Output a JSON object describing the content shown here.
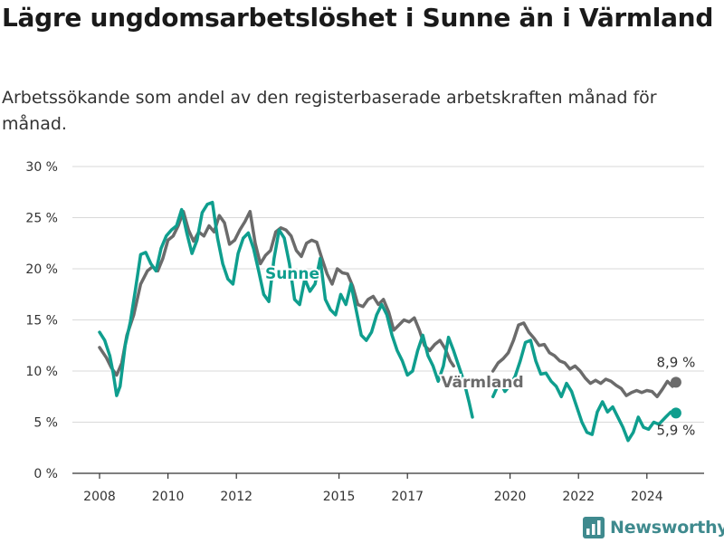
{
  "chart_data": {
    "type": "line",
    "title": "Lägre ungdomsarbetslöshet i Sunne än i Värmland",
    "subtitle": "Arbetssökande som andel av den registerbaserade arbetskraften månad för månad.",
    "xlabel": "",
    "ylabel": "",
    "ylim": [
      0,
      30
    ],
    "yticks": [
      0,
      5,
      10,
      15,
      20,
      25,
      30
    ],
    "ytick_labels": [
      "0 %",
      "5 %",
      "10 %",
      "15 %",
      "20 %",
      "25 %",
      "30 %"
    ],
    "xlim": [
      2008,
      2025.5
    ],
    "xticks": [
      2008,
      2010,
      2012,
      2015,
      2017,
      2020,
      2022,
      2024
    ],
    "xtick_labels": [
      "2008",
      "2010",
      "2012",
      "2015",
      "2017",
      "2020",
      "2022",
      "2024"
    ],
    "grid": true,
    "series": [
      {
        "name": "Värmland",
        "color": "#6b6b6b",
        "end_label": "8,9 %",
        "points": [
          [
            2008.0,
            12.3
          ],
          [
            2008.2,
            11.3
          ],
          [
            2008.35,
            10.3
          ],
          [
            2008.5,
            9.6
          ],
          [
            2008.65,
            10.8
          ],
          [
            2008.8,
            13.5
          ],
          [
            2009.0,
            15.5
          ],
          [
            2009.2,
            18.5
          ],
          [
            2009.4,
            19.8
          ],
          [
            2009.55,
            20.2
          ],
          [
            2009.7,
            19.8
          ],
          [
            2009.85,
            21.0
          ],
          [
            2010.0,
            22.8
          ],
          [
            2010.15,
            23.2
          ],
          [
            2010.3,
            24.2
          ],
          [
            2010.45,
            25.6
          ],
          [
            2010.6,
            23.8
          ],
          [
            2010.75,
            22.7
          ],
          [
            2010.9,
            23.6
          ],
          [
            2011.05,
            23.2
          ],
          [
            2011.2,
            24.2
          ],
          [
            2011.35,
            23.6
          ],
          [
            2011.5,
            25.2
          ],
          [
            2011.65,
            24.5
          ],
          [
            2011.8,
            22.4
          ],
          [
            2011.95,
            22.8
          ],
          [
            2012.1,
            23.8
          ],
          [
            2012.25,
            24.6
          ],
          [
            2012.4,
            25.6
          ],
          [
            2012.55,
            22.5
          ],
          [
            2012.7,
            20.5
          ],
          [
            2012.85,
            21.3
          ],
          [
            2013.0,
            21.8
          ],
          [
            2013.15,
            23.6
          ],
          [
            2013.3,
            24.0
          ],
          [
            2013.45,
            23.8
          ],
          [
            2013.6,
            23.2
          ],
          [
            2013.75,
            21.8
          ],
          [
            2013.9,
            21.2
          ],
          [
            2014.05,
            22.5
          ],
          [
            2014.2,
            22.8
          ],
          [
            2014.35,
            22.6
          ],
          [
            2014.5,
            21.0
          ],
          [
            2014.65,
            19.5
          ],
          [
            2014.8,
            18.5
          ],
          [
            2014.95,
            20.0
          ],
          [
            2015.1,
            19.6
          ],
          [
            2015.25,
            19.5
          ],
          [
            2015.4,
            18.3
          ],
          [
            2015.55,
            16.5
          ],
          [
            2015.7,
            16.3
          ],
          [
            2015.85,
            17.0
          ],
          [
            2016.0,
            17.3
          ],
          [
            2016.15,
            16.5
          ],
          [
            2016.3,
            17.0
          ],
          [
            2016.45,
            15.8
          ],
          [
            2016.6,
            14.0
          ],
          [
            2016.75,
            14.5
          ],
          [
            2016.9,
            15.0
          ],
          [
            2017.05,
            14.8
          ],
          [
            2017.2,
            15.2
          ],
          [
            2017.35,
            14.0
          ],
          [
            2017.5,
            12.5
          ],
          [
            2017.65,
            12.0
          ],
          [
            2017.8,
            12.6
          ],
          [
            2017.95,
            13.0
          ],
          [
            2018.1,
            12.2
          ],
          [
            2018.25,
            11.0
          ],
          [
            2018.35,
            10.5
          ]
        ],
        "points_2": [
          [
            2019.5,
            10.0
          ],
          [
            2019.65,
            10.8
          ],
          [
            2019.8,
            11.2
          ],
          [
            2019.95,
            11.8
          ],
          [
            2020.1,
            13.0
          ],
          [
            2020.25,
            14.5
          ],
          [
            2020.4,
            14.7
          ],
          [
            2020.55,
            13.8
          ],
          [
            2020.7,
            13.2
          ],
          [
            2020.85,
            12.5
          ],
          [
            2021.0,
            12.6
          ],
          [
            2021.15,
            11.8
          ],
          [
            2021.3,
            11.5
          ],
          [
            2021.45,
            11.0
          ],
          [
            2021.6,
            10.8
          ],
          [
            2021.75,
            10.2
          ],
          [
            2021.9,
            10.5
          ],
          [
            2022.05,
            10.0
          ],
          [
            2022.2,
            9.3
          ],
          [
            2022.35,
            8.8
          ],
          [
            2022.5,
            9.1
          ],
          [
            2022.65,
            8.8
          ],
          [
            2022.8,
            9.2
          ],
          [
            2022.95,
            9.0
          ],
          [
            2023.1,
            8.6
          ],
          [
            2023.25,
            8.3
          ],
          [
            2023.4,
            7.6
          ],
          [
            2023.55,
            7.9
          ],
          [
            2023.7,
            8.1
          ],
          [
            2023.85,
            7.9
          ],
          [
            2024.0,
            8.1
          ],
          [
            2024.15,
            8.0
          ],
          [
            2024.3,
            7.5
          ],
          [
            2024.45,
            8.2
          ],
          [
            2024.6,
            9.0
          ],
          [
            2024.75,
            8.5
          ],
          [
            2024.85,
            8.9
          ]
        ]
      },
      {
        "name": "Sunne",
        "color": "#0f9e8e",
        "end_label": "5,9 %",
        "points": [
          [
            2008.0,
            13.8
          ],
          [
            2008.15,
            13.0
          ],
          [
            2008.3,
            11.5
          ],
          [
            2008.4,
            9.8
          ],
          [
            2008.5,
            7.6
          ],
          [
            2008.6,
            8.5
          ],
          [
            2008.75,
            12.5
          ],
          [
            2008.9,
            14.8
          ],
          [
            2009.05,
            18.0
          ],
          [
            2009.2,
            21.4
          ],
          [
            2009.35,
            21.6
          ],
          [
            2009.5,
            20.5
          ],
          [
            2009.65,
            19.8
          ],
          [
            2009.8,
            22.0
          ],
          [
            2009.95,
            23.2
          ],
          [
            2010.1,
            23.8
          ],
          [
            2010.25,
            24.2
          ],
          [
            2010.4,
            25.8
          ],
          [
            2010.55,
            23.5
          ],
          [
            2010.7,
            21.5
          ],
          [
            2010.85,
            22.8
          ],
          [
            2011.0,
            25.5
          ],
          [
            2011.15,
            26.3
          ],
          [
            2011.3,
            26.5
          ],
          [
            2011.45,
            23.0
          ],
          [
            2011.6,
            20.5
          ],
          [
            2011.75,
            19.0
          ],
          [
            2011.9,
            18.5
          ],
          [
            2012.05,
            21.5
          ],
          [
            2012.2,
            23.0
          ],
          [
            2012.35,
            23.5
          ],
          [
            2012.5,
            22.0
          ],
          [
            2012.65,
            19.8
          ],
          [
            2012.8,
            17.5
          ],
          [
            2012.95,
            16.8
          ],
          [
            2013.1,
            21.0
          ],
          [
            2013.25,
            23.8
          ],
          [
            2013.4,
            23.0
          ],
          [
            2013.55,
            20.5
          ],
          [
            2013.7,
            17.0
          ],
          [
            2013.85,
            16.5
          ],
          [
            2014.0,
            19.0
          ],
          [
            2014.15,
            17.8
          ],
          [
            2014.3,
            18.5
          ],
          [
            2014.45,
            21.0
          ],
          [
            2014.6,
            17.0
          ],
          [
            2014.75,
            16.0
          ],
          [
            2014.9,
            15.5
          ],
          [
            2015.05,
            17.5
          ],
          [
            2015.2,
            16.5
          ],
          [
            2015.35,
            18.5
          ],
          [
            2015.5,
            16.0
          ],
          [
            2015.65,
            13.5
          ],
          [
            2015.8,
            13.0
          ],
          [
            2015.95,
            13.8
          ],
          [
            2016.1,
            15.5
          ],
          [
            2016.25,
            16.5
          ],
          [
            2016.4,
            15.5
          ],
          [
            2016.55,
            13.5
          ],
          [
            2016.7,
            12.0
          ],
          [
            2016.85,
            11.0
          ],
          [
            2017.0,
            9.6
          ],
          [
            2017.15,
            10.0
          ],
          [
            2017.3,
            12.0
          ],
          [
            2017.45,
            13.5
          ],
          [
            2017.6,
            11.5
          ],
          [
            2017.75,
            10.5
          ],
          [
            2017.9,
            9.0
          ],
          [
            2018.05,
            10.5
          ],
          [
            2018.2,
            13.3
          ],
          [
            2018.35,
            12.0
          ],
          [
            2018.5,
            10.5
          ],
          [
            2018.65,
            9.0
          ],
          [
            2018.8,
            7.0
          ],
          [
            2018.9,
            5.5
          ]
        ],
        "points_2": [
          [
            2019.5,
            7.5
          ],
          [
            2019.7,
            9.0
          ],
          [
            2019.85,
            8.0
          ],
          [
            2020.0,
            8.6
          ],
          [
            2020.15,
            9.5
          ],
          [
            2020.3,
            11.0
          ],
          [
            2020.45,
            12.8
          ],
          [
            2020.6,
            13.0
          ],
          [
            2020.75,
            11.0
          ],
          [
            2020.9,
            9.7
          ],
          [
            2021.05,
            9.8
          ],
          [
            2021.2,
            9.0
          ],
          [
            2021.35,
            8.5
          ],
          [
            2021.5,
            7.5
          ],
          [
            2021.65,
            8.8
          ],
          [
            2021.8,
            8.0
          ],
          [
            2021.95,
            6.5
          ],
          [
            2022.1,
            5.0
          ],
          [
            2022.25,
            4.0
          ],
          [
            2022.4,
            3.8
          ],
          [
            2022.55,
            6.0
          ],
          [
            2022.7,
            7.0
          ],
          [
            2022.85,
            6.0
          ],
          [
            2023.0,
            6.5
          ],
          [
            2023.15,
            5.5
          ],
          [
            2023.3,
            4.5
          ],
          [
            2023.45,
            3.2
          ],
          [
            2023.6,
            4.0
          ],
          [
            2023.75,
            5.5
          ],
          [
            2023.9,
            4.5
          ],
          [
            2024.05,
            4.3
          ],
          [
            2024.2,
            5.0
          ],
          [
            2024.35,
            4.8
          ],
          [
            2024.55,
            5.5
          ],
          [
            2024.7,
            6.0
          ],
          [
            2024.85,
            5.9
          ]
        ]
      }
    ]
  },
  "brand": {
    "name": "Newsworthy",
    "color": "#3f8a8e"
  }
}
